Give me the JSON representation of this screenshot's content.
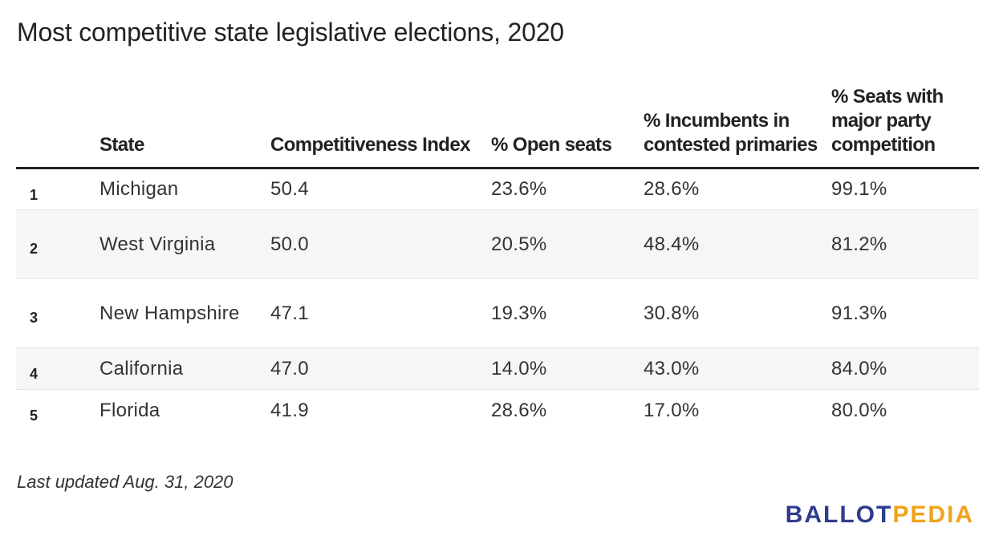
{
  "title": "Most competitive state legislative elections, 2020",
  "columns": {
    "rank": "",
    "state": "State",
    "index": "Competitiveness Index",
    "open": "% Open seats",
    "incumbents": "% Incumbents in contested primaries",
    "seats": "% Seats with major party competition"
  },
  "rows": [
    {
      "rank": "1",
      "state": "Michigan",
      "index": "50.4",
      "open": "23.6%",
      "incumbents": "28.6%",
      "seats": "99.1%"
    },
    {
      "rank": "2",
      "state": "West Virginia",
      "index": "50.0",
      "open": "20.5%",
      "incumbents": "48.4%",
      "seats": "81.2%"
    },
    {
      "rank": "3",
      "state": "New Hampshire",
      "index": "47.1",
      "open": "19.3%",
      "incumbents": "30.8%",
      "seats": "91.3%"
    },
    {
      "rank": "4",
      "state": "California",
      "index": "47.0",
      "open": "14.0%",
      "incumbents": "43.0%",
      "seats": "84.0%"
    },
    {
      "rank": "5",
      "state": "Florida",
      "index": "41.9",
      "open": "28.6%",
      "incumbents": "17.0%",
      "seats": "80.0%"
    }
  ],
  "chart_data": {
    "type": "table",
    "title": "Most competitive state legislative elections, 2020",
    "columns": [
      "",
      "State",
      "Competitiveness Index",
      "% Open seats",
      "% Incumbents in contested primaries",
      "% Seats with major party competition"
    ],
    "rows": [
      [
        1,
        "Michigan",
        50.4,
        23.6,
        28.6,
        99.1
      ],
      [
        2,
        "West Virginia",
        50.0,
        20.5,
        48.4,
        81.2
      ],
      [
        3,
        "New Hampshire",
        47.1,
        19.3,
        30.8,
        91.3
      ],
      [
        4,
        "California",
        47.0,
        14.0,
        43.0,
        84.0
      ],
      [
        5,
        "Florida",
        41.9,
        28.6,
        17.0,
        80.0
      ]
    ]
  },
  "footer": {
    "note": "Last updated Aug. 31, 2020",
    "logo_part1": "BALLOT",
    "logo_part2": "PEDIA"
  },
  "colors": {
    "logo_blue": "#2f3c8f",
    "logo_gold": "#f0a31b",
    "alt_row": "#f6f6f6"
  }
}
